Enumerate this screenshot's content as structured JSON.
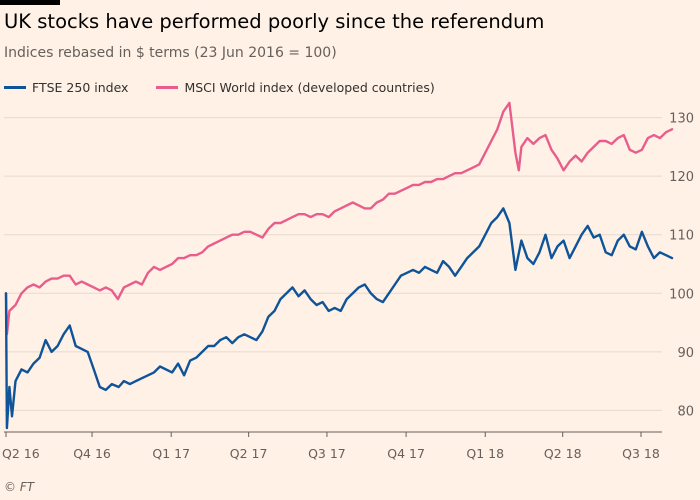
{
  "header": {
    "title": "UK stocks have performed poorly since the referendum",
    "subtitle": "Indices rebased in $ terms (23 Jun 2016 = 100)"
  },
  "footer": {
    "source": "© FT"
  },
  "chart_data": {
    "type": "line",
    "title": "UK stocks have performed poorly since the referendum",
    "subtitle": "Indices rebased in $ terms (23 Jun 2016 = 100)",
    "xlabel": "",
    "ylabel": "",
    "ylim": [
      77,
      133
    ],
    "y_ticks": [
      80,
      90,
      100,
      110,
      120,
      130
    ],
    "y_axis_position": "right",
    "grid": "horizontal",
    "legend_position": "top-left",
    "x_ticks": [
      {
        "label": "Q2 16",
        "date": "2016-06-23"
      },
      {
        "label": "Q4 16",
        "date": "2016-10-01"
      },
      {
        "label": "Q1 17",
        "date": "2017-01-01"
      },
      {
        "label": "Q2 17",
        "date": "2017-04-01"
      },
      {
        "label": "Q3 17",
        "date": "2017-07-01"
      },
      {
        "label": "Q4 17",
        "date": "2017-10-01"
      },
      {
        "label": "Q1 18",
        "date": "2018-01-01"
      },
      {
        "label": "Q2 18",
        "date": "2018-04-01"
      },
      {
        "label": "Q3 18",
        "date": "2018-07-01"
      }
    ],
    "series": [
      {
        "name": "FTSE 250 index",
        "color": "#0f5499",
        "points": [
          [
            "2016-06-23",
            100
          ],
          [
            "2016-06-24",
            77
          ],
          [
            "2016-06-27",
            84
          ],
          [
            "2016-06-30",
            79
          ],
          [
            "2016-07-04",
            85
          ],
          [
            "2016-07-11",
            87
          ],
          [
            "2016-07-18",
            86.5
          ],
          [
            "2016-07-25",
            88
          ],
          [
            "2016-08-01",
            89
          ],
          [
            "2016-08-08",
            92
          ],
          [
            "2016-08-15",
            90
          ],
          [
            "2016-08-22",
            91
          ],
          [
            "2016-08-29",
            93
          ],
          [
            "2016-09-05",
            94.5
          ],
          [
            "2016-09-12",
            91
          ],
          [
            "2016-09-19",
            90.5
          ],
          [
            "2016-09-26",
            90
          ],
          [
            "2016-10-03",
            87
          ],
          [
            "2016-10-10",
            84
          ],
          [
            "2016-10-17",
            83.5
          ],
          [
            "2016-10-24",
            84.5
          ],
          [
            "2016-11-01",
            84
          ],
          [
            "2016-11-07",
            85
          ],
          [
            "2016-11-14",
            84.5
          ],
          [
            "2016-11-21",
            85
          ],
          [
            "2016-11-28",
            85.5
          ],
          [
            "2016-12-05",
            86
          ],
          [
            "2016-12-12",
            86.5
          ],
          [
            "2016-12-19",
            87.5
          ],
          [
            "2017-01-02",
            86.5
          ],
          [
            "2017-01-09",
            88
          ],
          [
            "2017-01-16",
            86
          ],
          [
            "2017-01-23",
            88.5
          ],
          [
            "2017-01-30",
            89
          ],
          [
            "2017-02-06",
            90
          ],
          [
            "2017-02-13",
            91
          ],
          [
            "2017-02-20",
            91
          ],
          [
            "2017-02-27",
            92
          ],
          [
            "2017-03-06",
            92.5
          ],
          [
            "2017-03-13",
            91.5
          ],
          [
            "2017-03-20",
            92.5
          ],
          [
            "2017-03-27",
            93
          ],
          [
            "2017-04-03",
            92.5
          ],
          [
            "2017-04-10",
            92
          ],
          [
            "2017-04-17",
            93.5
          ],
          [
            "2017-04-24",
            96
          ],
          [
            "2017-05-01",
            97
          ],
          [
            "2017-05-08",
            99
          ],
          [
            "2017-05-15",
            100
          ],
          [
            "2017-05-22",
            101
          ],
          [
            "2017-05-29",
            99.5
          ],
          [
            "2017-06-05",
            100.5
          ],
          [
            "2017-06-12",
            99
          ],
          [
            "2017-06-19",
            98
          ],
          [
            "2017-06-26",
            98.5
          ],
          [
            "2017-07-03",
            97
          ],
          [
            "2017-07-10",
            97.5
          ],
          [
            "2017-07-17",
            97
          ],
          [
            "2017-07-24",
            99
          ],
          [
            "2017-07-31",
            100
          ],
          [
            "2017-08-07",
            101
          ],
          [
            "2017-08-14",
            101.5
          ],
          [
            "2017-08-21",
            100
          ],
          [
            "2017-08-28",
            99
          ],
          [
            "2017-09-04",
            98.5
          ],
          [
            "2017-09-11",
            100
          ],
          [
            "2017-09-18",
            101.5
          ],
          [
            "2017-09-25",
            103
          ],
          [
            "2017-10-02",
            103.5
          ],
          [
            "2017-10-09",
            104
          ],
          [
            "2017-10-16",
            103.5
          ],
          [
            "2017-10-23",
            104.5
          ],
          [
            "2017-10-30",
            104
          ],
          [
            "2017-11-06",
            103.5
          ],
          [
            "2017-11-13",
            105.5
          ],
          [
            "2017-11-20",
            104.5
          ],
          [
            "2017-11-27",
            103
          ],
          [
            "2017-12-04",
            104.5
          ],
          [
            "2017-12-11",
            106
          ],
          [
            "2017-12-18",
            107
          ],
          [
            "2017-12-25",
            108
          ],
          [
            "2018-01-01",
            110
          ],
          [
            "2018-01-08",
            112
          ],
          [
            "2018-01-15",
            113
          ],
          [
            "2018-01-22",
            114.5
          ],
          [
            "2018-01-29",
            112
          ],
          [
            "2018-02-05",
            104
          ],
          [
            "2018-02-12",
            109
          ],
          [
            "2018-02-19",
            106
          ],
          [
            "2018-02-26",
            105
          ],
          [
            "2018-03-05",
            107
          ],
          [
            "2018-03-12",
            110
          ],
          [
            "2018-03-19",
            106
          ],
          [
            "2018-03-26",
            108
          ],
          [
            "2018-04-02",
            109
          ],
          [
            "2018-04-09",
            106
          ],
          [
            "2018-04-16",
            108
          ],
          [
            "2018-04-23",
            110
          ],
          [
            "2018-04-30",
            111.5
          ],
          [
            "2018-05-07",
            109.5
          ],
          [
            "2018-05-14",
            110
          ],
          [
            "2018-05-21",
            107
          ],
          [
            "2018-05-28",
            106.5
          ],
          [
            "2018-06-04",
            109
          ],
          [
            "2018-06-11",
            110
          ],
          [
            "2018-06-18",
            108
          ],
          [
            "2018-06-25",
            107.5
          ],
          [
            "2018-07-02",
            110.5
          ],
          [
            "2018-07-09",
            108
          ],
          [
            "2018-07-16",
            106
          ],
          [
            "2018-07-23",
            107
          ],
          [
            "2018-07-30",
            106.5
          ],
          [
            "2018-08-06",
            106
          ]
        ]
      },
      {
        "name": "MSCI World index (developed countries)",
        "color": "#e95d8c",
        "points": [
          [
            "2016-06-23",
            100
          ],
          [
            "2016-06-24",
            93
          ],
          [
            "2016-06-27",
            97
          ],
          [
            "2016-07-04",
            98
          ],
          [
            "2016-07-11",
            100
          ],
          [
            "2016-07-18",
            101
          ],
          [
            "2016-07-25",
            101.5
          ],
          [
            "2016-08-01",
            101
          ],
          [
            "2016-08-08",
            102
          ],
          [
            "2016-08-15",
            102.5
          ],
          [
            "2016-08-22",
            102.5
          ],
          [
            "2016-08-29",
            103
          ],
          [
            "2016-09-05",
            103
          ],
          [
            "2016-09-12",
            101.5
          ],
          [
            "2016-09-19",
            102
          ],
          [
            "2016-09-26",
            101.5
          ],
          [
            "2016-10-03",
            101
          ],
          [
            "2016-10-10",
            100.5
          ],
          [
            "2016-10-17",
            101
          ],
          [
            "2016-10-24",
            100.5
          ],
          [
            "2016-10-31",
            99
          ],
          [
            "2016-11-07",
            101
          ],
          [
            "2016-11-14",
            101.5
          ],
          [
            "2016-11-21",
            102
          ],
          [
            "2016-11-28",
            101.5
          ],
          [
            "2016-12-05",
            103.5
          ],
          [
            "2016-12-12",
            104.5
          ],
          [
            "2016-12-19",
            104
          ],
          [
            "2016-12-26",
            104.5
          ],
          [
            "2017-01-02",
            105
          ],
          [
            "2017-01-09",
            106
          ],
          [
            "2017-01-16",
            106
          ],
          [
            "2017-01-23",
            106.5
          ],
          [
            "2017-01-30",
            106.5
          ],
          [
            "2017-02-06",
            107
          ],
          [
            "2017-02-13",
            108
          ],
          [
            "2017-02-20",
            108.5
          ],
          [
            "2017-02-27",
            109
          ],
          [
            "2017-03-06",
            109.5
          ],
          [
            "2017-03-13",
            110
          ],
          [
            "2017-03-20",
            110
          ],
          [
            "2017-03-27",
            110.5
          ],
          [
            "2017-04-03",
            110.5
          ],
          [
            "2017-04-10",
            110
          ],
          [
            "2017-04-17",
            109.5
          ],
          [
            "2017-04-24",
            111
          ],
          [
            "2017-05-01",
            112
          ],
          [
            "2017-05-08",
            112
          ],
          [
            "2017-05-15",
            112.5
          ],
          [
            "2017-05-22",
            113
          ],
          [
            "2017-05-29",
            113.5
          ],
          [
            "2017-06-05",
            113.5
          ],
          [
            "2017-06-12",
            113
          ],
          [
            "2017-06-19",
            113.5
          ],
          [
            "2017-06-26",
            113.5
          ],
          [
            "2017-07-03",
            113
          ],
          [
            "2017-07-10",
            114
          ],
          [
            "2017-07-17",
            114.5
          ],
          [
            "2017-07-24",
            115
          ],
          [
            "2017-07-31",
            115.5
          ],
          [
            "2017-08-07",
            115
          ],
          [
            "2017-08-14",
            114.5
          ],
          [
            "2017-08-21",
            114.5
          ],
          [
            "2017-08-28",
            115.5
          ],
          [
            "2017-09-04",
            116
          ],
          [
            "2017-09-11",
            117
          ],
          [
            "2017-09-18",
            117
          ],
          [
            "2017-09-25",
            117.5
          ],
          [
            "2017-10-02",
            118
          ],
          [
            "2017-10-09",
            118.5
          ],
          [
            "2017-10-16",
            118.5
          ],
          [
            "2017-10-23",
            119
          ],
          [
            "2017-10-30",
            119
          ],
          [
            "2017-11-06",
            119.5
          ],
          [
            "2017-11-13",
            119.5
          ],
          [
            "2017-11-20",
            120
          ],
          [
            "2017-11-27",
            120.5
          ],
          [
            "2017-12-04",
            120.5
          ],
          [
            "2017-12-11",
            121
          ],
          [
            "2017-12-18",
            121.5
          ],
          [
            "2017-12-25",
            122
          ],
          [
            "2018-01-01",
            124
          ],
          [
            "2018-01-08",
            126
          ],
          [
            "2018-01-15",
            128
          ],
          [
            "2018-01-22",
            131
          ],
          [
            "2018-01-29",
            132.5
          ],
          [
            "2018-02-05",
            124
          ],
          [
            "2018-02-09",
            121
          ],
          [
            "2018-02-12",
            125
          ],
          [
            "2018-02-19",
            126.5
          ],
          [
            "2018-02-26",
            125.5
          ],
          [
            "2018-03-05",
            126.5
          ],
          [
            "2018-03-12",
            127
          ],
          [
            "2018-03-19",
            124.5
          ],
          [
            "2018-03-26",
            123
          ],
          [
            "2018-04-02",
            121
          ],
          [
            "2018-04-09",
            122.5
          ],
          [
            "2018-04-16",
            123.5
          ],
          [
            "2018-04-23",
            122.5
          ],
          [
            "2018-04-30",
            124
          ],
          [
            "2018-05-07",
            125
          ],
          [
            "2018-05-14",
            126
          ],
          [
            "2018-05-21",
            126
          ],
          [
            "2018-05-28",
            125.5
          ],
          [
            "2018-06-04",
            126.5
          ],
          [
            "2018-06-11",
            127
          ],
          [
            "2018-06-18",
            124.5
          ],
          [
            "2018-06-25",
            124
          ],
          [
            "2018-07-02",
            124.5
          ],
          [
            "2018-07-09",
            126.5
          ],
          [
            "2018-07-16",
            127
          ],
          [
            "2018-07-23",
            126.5
          ],
          [
            "2018-07-30",
            127.5
          ],
          [
            "2018-08-06",
            128
          ]
        ]
      }
    ]
  }
}
